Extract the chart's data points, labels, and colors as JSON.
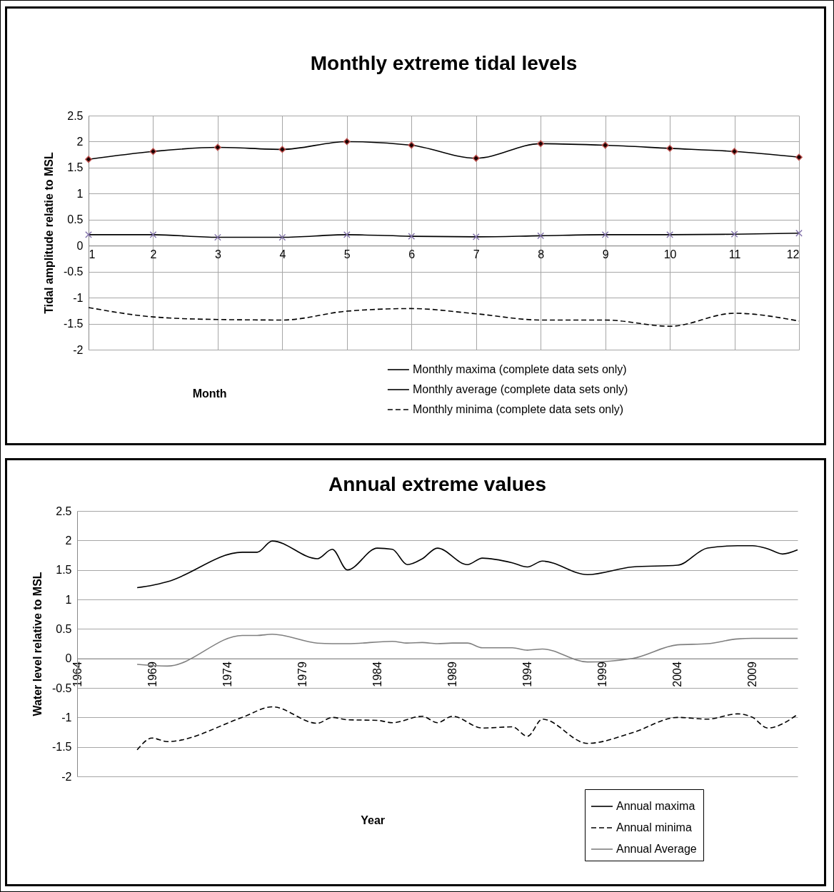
{
  "chart_data": [
    {
      "type": "line",
      "title": "Monthly extreme tidal levels",
      "xlabel": "Month",
      "ylabel": "Tidal amplitude relatie to MSL",
      "x": [
        1,
        2,
        3,
        4,
        5,
        6,
        7,
        8,
        9,
        10,
        11,
        12
      ],
      "xlim": [
        1,
        12
      ],
      "xticks": [
        1,
        2,
        3,
        4,
        5,
        6,
        7,
        8,
        9,
        10,
        11,
        12
      ],
      "ylim": [
        -2,
        2.5
      ],
      "yticks": [
        -2,
        -1.5,
        -1,
        -0.5,
        0,
        0.5,
        1,
        1.5,
        2,
        2.5
      ],
      "grid": true,
      "legend": "bottom",
      "series": [
        {
          "name": "Monthly maxima (complete data sets only)",
          "color": "#000000",
          "marker": "diamond",
          "line_style": "solid",
          "values": [
            1.66,
            1.81,
            1.89,
            1.85,
            2.0,
            1.93,
            1.68,
            1.96,
            1.93,
            1.87,
            1.81,
            1.7
          ]
        },
        {
          "name": "Monthly average (complete data sets only)",
          "color": "#000000",
          "marker": "cross",
          "line_style": "solid",
          "values": [
            0.21,
            0.21,
            0.16,
            0.16,
            0.21,
            0.18,
            0.17,
            0.19,
            0.21,
            0.21,
            0.22,
            0.24
          ]
        },
        {
          "name": "Monthly minima (complete data sets only)",
          "color": "#000000",
          "marker": "none",
          "line_style": "dashed",
          "values": [
            -1.19,
            -1.37,
            -1.42,
            -1.43,
            -1.26,
            -1.21,
            -1.31,
            -1.43,
            -1.43,
            -1.55,
            -1.3,
            -1.45
          ]
        }
      ]
    },
    {
      "type": "line",
      "title": "Annual extreme values",
      "xlabel": "Year",
      "ylabel": "Water level relative to MSL",
      "xlim": [
        1964,
        2012
      ],
      "xticks": [
        1964,
        1969,
        1974,
        1979,
        1984,
        1989,
        1994,
        1999,
        2004,
        2009
      ],
      "ylim": [
        -2,
        2.5
      ],
      "yticks": [
        -2,
        -1.5,
        -1,
        -0.5,
        0,
        0.5,
        1,
        1.5,
        2,
        2.5
      ],
      "grid": "y",
      "legend": "bottom right",
      "series": [
        {
          "name": "Annual maxima",
          "color": "#000000",
          "line_style": "solid",
          "x": [
            1968,
            1969,
            1970,
            1975,
            1976,
            1977,
            1980,
            1981,
            1982,
            1984,
            1985,
            1986,
            1987,
            1988,
            1990,
            1991,
            1993,
            1994,
            1995,
            1998,
            2001,
            2004,
            2006,
            2008,
            2009,
            2010,
            2011,
            2012
          ],
          "values": [
            1.2,
            1.24,
            1.3,
            1.8,
            1.8,
            1.99,
            1.69,
            1.85,
            1.5,
            1.87,
            1.85,
            1.59,
            1.69,
            1.87,
            1.59,
            1.7,
            1.62,
            1.55,
            1.65,
            1.42,
            1.55,
            1.58,
            1.87,
            1.91,
            1.91,
            1.86,
            1.77,
            1.84
          ]
        },
        {
          "name": "Annual minima",
          "color": "#000000",
          "line_style": "dashed",
          "x": [
            1968,
            1969,
            1970,
            1975,
            1977,
            1980,
            1981,
            1982,
            1984,
            1985,
            1987,
            1988,
            1989,
            1991,
            1993,
            1994,
            1995,
            1998,
            2001,
            2004,
            2006,
            2008,
            2009,
            2010,
            2012
          ],
          "values": [
            -1.55,
            -1.35,
            -1.41,
            -1.0,
            -0.82,
            -1.1,
            -1.0,
            -1.04,
            -1.05,
            -1.09,
            -0.98,
            -1.09,
            -0.98,
            -1.18,
            -1.16,
            -1.32,
            -1.03,
            -1.44,
            -1.26,
            -1.0,
            -1.03,
            -0.94,
            -1.0,
            -1.18,
            -0.95
          ]
        },
        {
          "name": "Annual Average",
          "color": "#808080",
          "line_style": "solid",
          "x": [
            1968,
            1970,
            1975,
            1976,
            1977,
            1980,
            1981,
            1982,
            1985,
            1986,
            1987,
            1988,
            1989,
            1990,
            1991,
            1993,
            1994,
            1995,
            1998,
            2001,
            2004,
            2006,
            2008,
            2009,
            2012
          ],
          "values": [
            -0.1,
            -0.13,
            0.39,
            0.39,
            0.41,
            0.26,
            0.25,
            0.25,
            0.29,
            0.26,
            0.27,
            0.25,
            0.26,
            0.26,
            0.18,
            0.18,
            0.14,
            0.16,
            -0.06,
            0.0,
            0.23,
            0.25,
            0.33,
            0.34,
            0.34
          ]
        }
      ]
    }
  ]
}
